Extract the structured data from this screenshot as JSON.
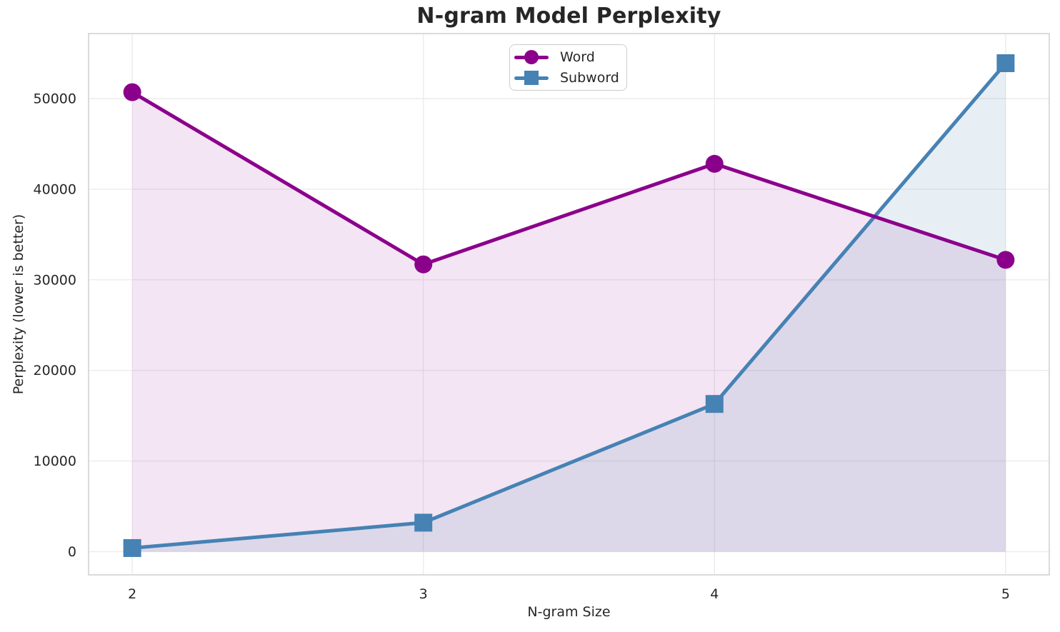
{
  "chart_data": {
    "type": "line",
    "title": "N-gram Model Perplexity",
    "xlabel": "N-gram Size",
    "ylabel": "Perplexity (lower is better)",
    "x": [
      2,
      3,
      4,
      5
    ],
    "x_tick_labels": [
      "2",
      "3",
      "4",
      "5"
    ],
    "y_ticks": [
      0,
      10000,
      20000,
      30000,
      40000,
      50000
    ],
    "xlim": [
      1.85,
      5.15
    ],
    "ylim": [
      -2560,
      57170
    ],
    "grid": true,
    "legend_position": "upper center",
    "area_fill_baseline": 0,
    "series": [
      {
        "name": "Word",
        "color": "#8B008B",
        "marker": "circle",
        "fill_alpha": 0.1,
        "line_width": 5,
        "zorder": 2,
        "values": [
          50700,
          31700,
          42800,
          32200
        ]
      },
      {
        "name": "Subword",
        "color": "#4682B4",
        "marker": "square",
        "fill_alpha": 0.13,
        "line_width": 5,
        "zorder": 1,
        "values": [
          400,
          3200,
          16300,
          53900
        ]
      }
    ],
    "colors": {
      "text": "#262626",
      "grid": "#ECECEC",
      "spine": "#D2D2D2",
      "plot_background": "#FFFFFF"
    }
  }
}
